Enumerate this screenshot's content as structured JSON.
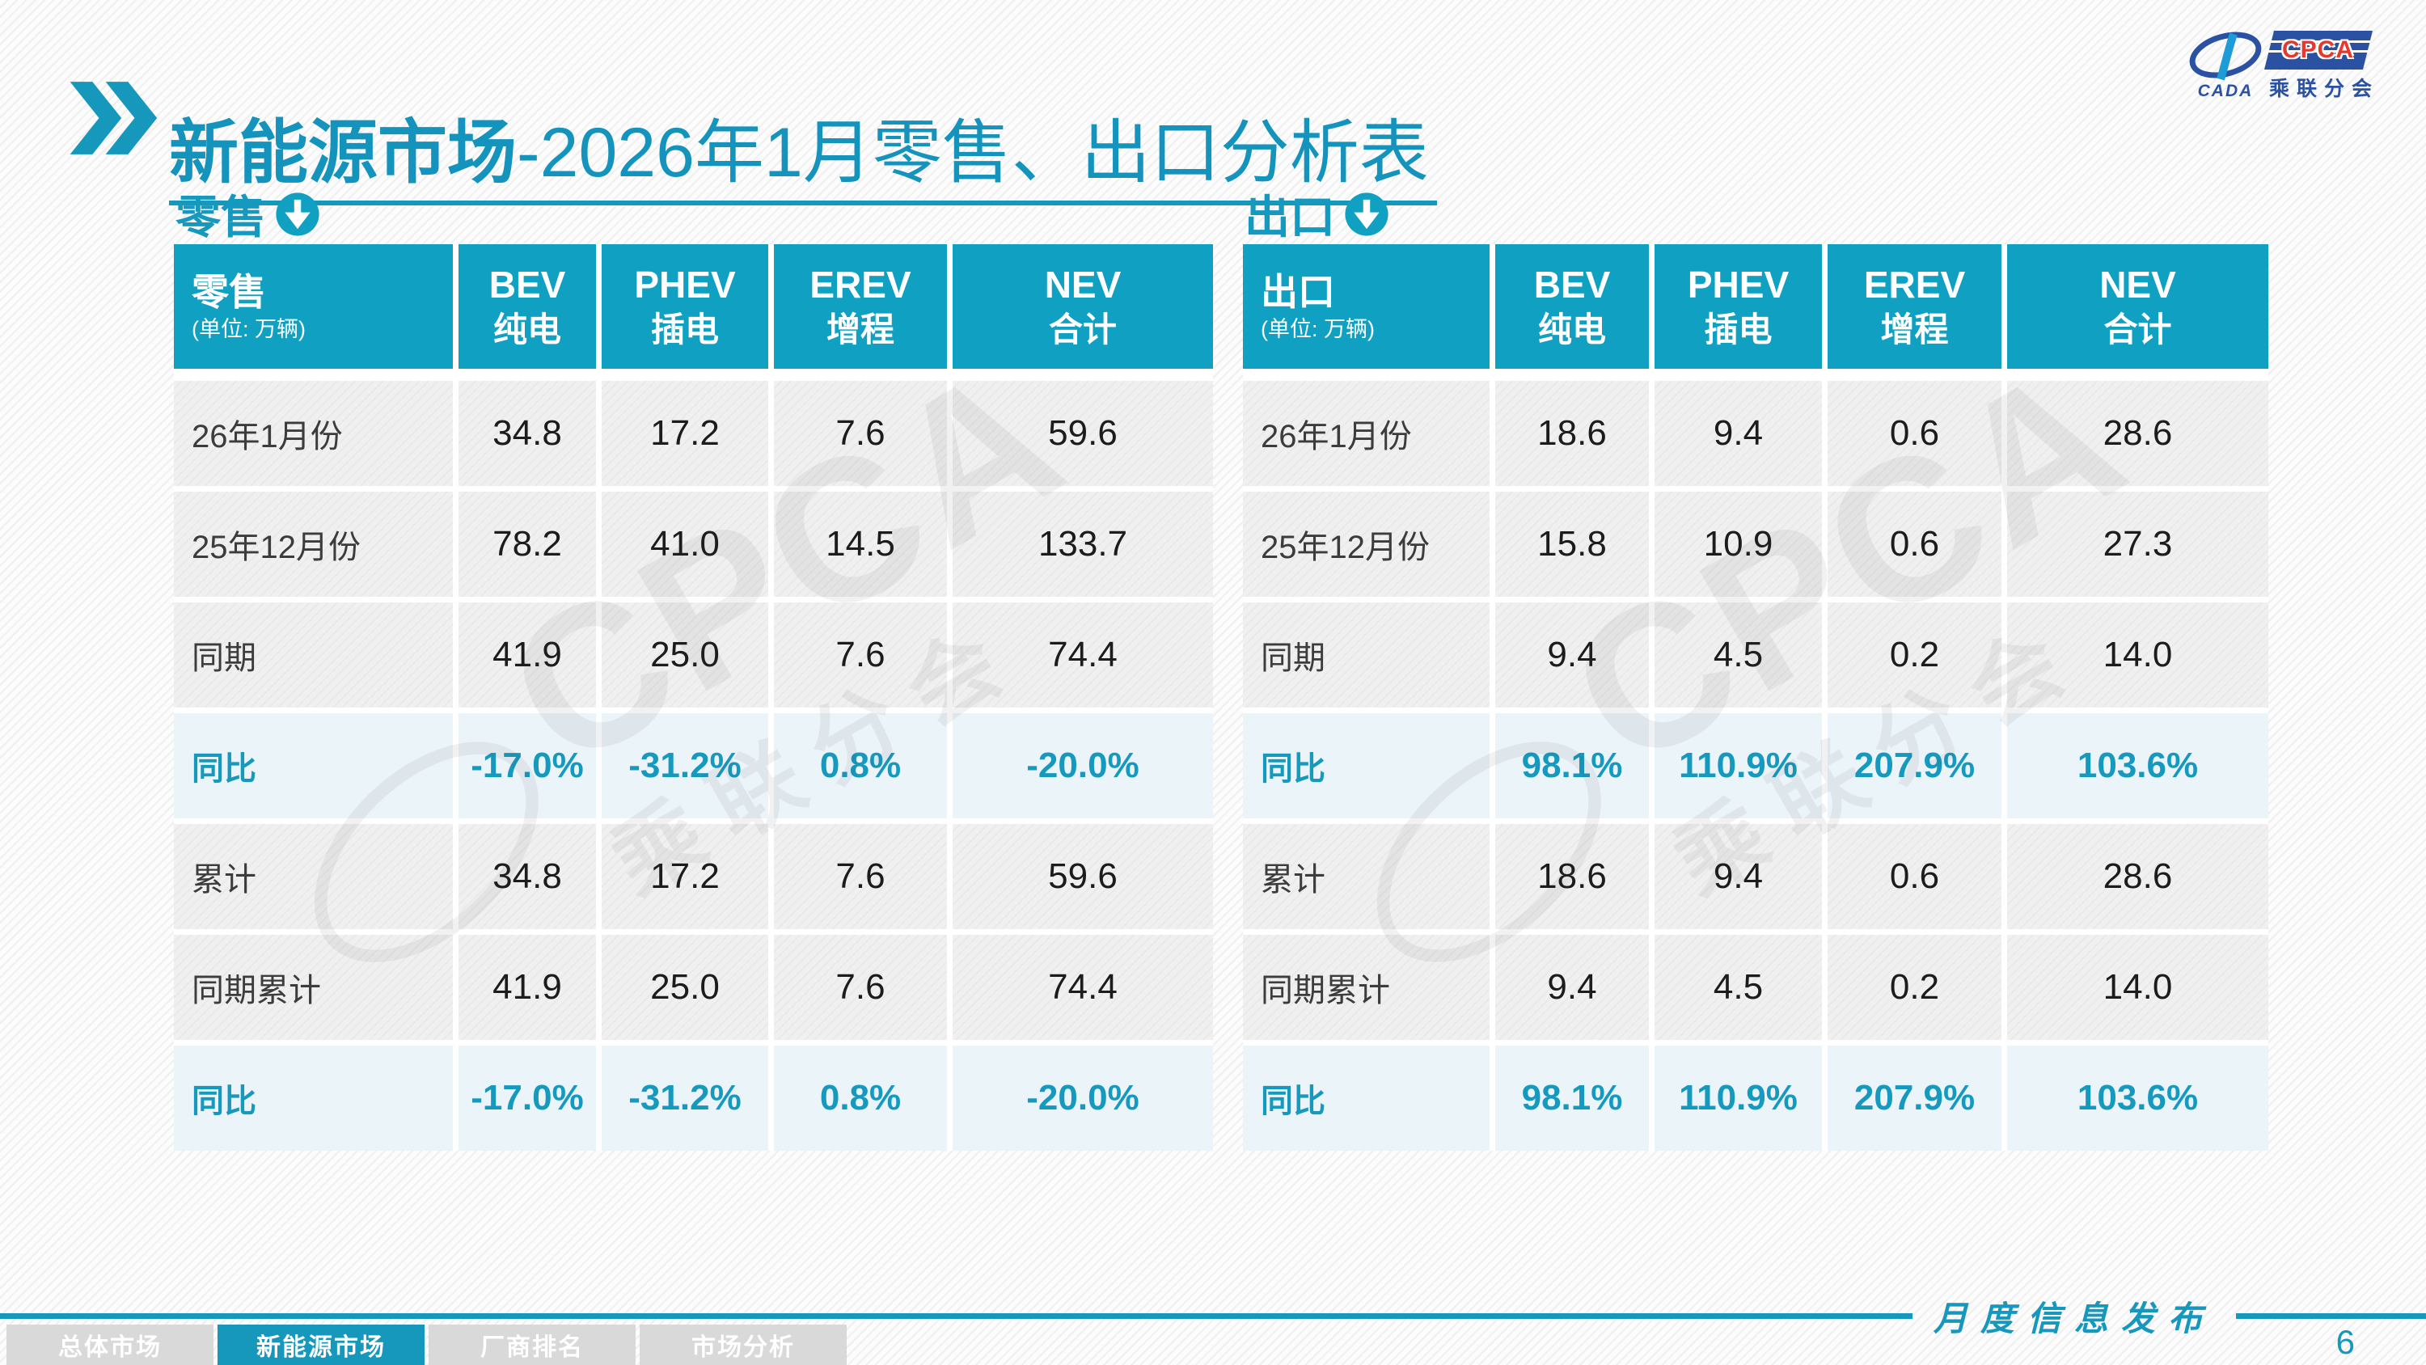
{
  "page": {
    "title_bold": "新能源市场",
    "title_rest": "-2026年1月零售、出口分析表",
    "footer_note": "月度信息发布",
    "page_number": "6"
  },
  "colors": {
    "accent_teal": "#1598BC",
    "table_header_fill": "#0FA0C2",
    "highlight_row_bg": "#EBF4F9",
    "logo_blue": "#2B51A3",
    "logo_red": "#E8372C"
  },
  "logo": {
    "cada": "CADA",
    "cpca": "CPCA",
    "branch": "乘联分会"
  },
  "watermark": {
    "text": "CPCA",
    "subtext": "乘联分会"
  },
  "tables": [
    {
      "section_label": "零售",
      "header": {
        "title": "零售",
        "unit": "(单位: 万辆)",
        "columns": [
          {
            "en": "BEV",
            "cn": "纯电"
          },
          {
            "en": "PHEV",
            "cn": "插电"
          },
          {
            "en": "EREV",
            "cn": "增程"
          },
          {
            "en": "NEV",
            "cn": "合计"
          }
        ]
      },
      "rows": [
        {
          "label": "26年1月份",
          "values": [
            "34.8",
            "17.2",
            "7.6",
            "59.6"
          ],
          "highlight": false
        },
        {
          "label": "25年12月份",
          "values": [
            "78.2",
            "41.0",
            "14.5",
            "133.7"
          ],
          "highlight": false
        },
        {
          "label": "同期",
          "values": [
            "41.9",
            "25.0",
            "7.6",
            "74.4"
          ],
          "highlight": false
        },
        {
          "label": "同比",
          "values": [
            "-17.0%",
            "-31.2%",
            "0.8%",
            "-20.0%"
          ],
          "highlight": true
        },
        {
          "label": "累计",
          "values": [
            "34.8",
            "17.2",
            "7.6",
            "59.6"
          ],
          "highlight": false
        },
        {
          "label": "同期累计",
          "values": [
            "41.9",
            "25.0",
            "7.6",
            "74.4"
          ],
          "highlight": false
        },
        {
          "label": "同比",
          "values": [
            "-17.0%",
            "-31.2%",
            "0.8%",
            "-20.0%"
          ],
          "highlight": true
        }
      ]
    },
    {
      "section_label": "出口",
      "header": {
        "title": "出口",
        "unit": "(单位: 万辆)",
        "columns": [
          {
            "en": "BEV",
            "cn": "纯电"
          },
          {
            "en": "PHEV",
            "cn": "插电"
          },
          {
            "en": "EREV",
            "cn": "增程"
          },
          {
            "en": "NEV",
            "cn": "合计"
          }
        ]
      },
      "rows": [
        {
          "label": "26年1月份",
          "values": [
            "18.6",
            "9.4",
            "0.6",
            "28.6"
          ],
          "highlight": false
        },
        {
          "label": "25年12月份",
          "values": [
            "15.8",
            "10.9",
            "0.6",
            "27.3"
          ],
          "highlight": false
        },
        {
          "label": "同期",
          "values": [
            "9.4",
            "4.5",
            "0.2",
            "14.0"
          ],
          "highlight": false
        },
        {
          "label": "同比",
          "values": [
            "98.1%",
            "110.9%",
            "207.9%",
            "103.6%"
          ],
          "highlight": true
        },
        {
          "label": "累计",
          "values": [
            "18.6",
            "9.4",
            "0.6",
            "28.6"
          ],
          "highlight": false
        },
        {
          "label": "同期累计",
          "values": [
            "9.4",
            "4.5",
            "0.2",
            "14.0"
          ],
          "highlight": false
        },
        {
          "label": "同比",
          "values": [
            "98.1%",
            "110.9%",
            "207.9%",
            "103.6%"
          ],
          "highlight": true
        }
      ]
    }
  ],
  "nav_tabs": [
    {
      "label": "总体市场",
      "active": false
    },
    {
      "label": "新能源市场",
      "active": true
    },
    {
      "label": "厂商排名",
      "active": false
    },
    {
      "label": "市场分析",
      "active": false
    }
  ]
}
